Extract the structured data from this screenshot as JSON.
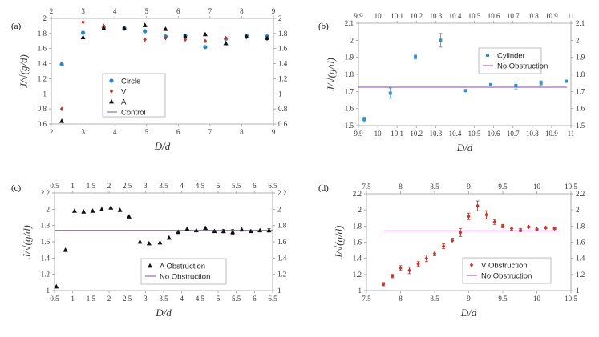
{
  "colors": {
    "circle": "#2e86c1",
    "v": "#c0392b",
    "a": "#111111",
    "control": "#8e44ad",
    "cylinder": "#3b8fc4",
    "axis": "#9a9a9a",
    "text": "#333333"
  },
  "chart_data": [
    {
      "panel": "(a)",
      "type": "scatter",
      "xlabel": "D/d",
      "ylabel": "J/√(g/d)",
      "xlim": [
        2,
        9
      ],
      "ylim": [
        0.6,
        2
      ],
      "xticks": [
        "2",
        "3",
        "4",
        "5",
        "6",
        "7",
        "8",
        "9"
      ],
      "yticks": [
        "0.6",
        "0.8",
        "1",
        "1.2",
        "1.4",
        "1.6",
        "1.8",
        "2"
      ],
      "series": [
        {
          "name": "Circle",
          "marker": "circle",
          "color": "#2e86c1",
          "x": [
            2.33,
            3.0,
            3.65,
            4.3,
            4.95,
            5.6,
            6.22,
            6.85,
            7.5,
            8.15,
            8.8
          ],
          "y": [
            1.39,
            1.81,
            1.88,
            1.87,
            1.83,
            1.76,
            1.77,
            1.62,
            1.73,
            1.77,
            1.76
          ]
        },
        {
          "name": "V",
          "marker": "diamond",
          "color": "#c0392b",
          "x": [
            2.33,
            3.0,
            3.65,
            4.3,
            4.95,
            5.6,
            6.22,
            6.85,
            7.5,
            8.15,
            8.8
          ],
          "y": [
            0.8,
            1.95,
            1.9,
            1.86,
            1.72,
            1.74,
            1.72,
            1.7,
            1.74,
            1.75,
            1.73
          ]
        },
        {
          "name": "A",
          "marker": "triangle",
          "color": "#111111",
          "x": [
            2.33,
            3.0,
            3.65,
            4.3,
            4.95,
            5.6,
            6.22,
            6.85,
            7.5,
            8.15,
            8.8
          ],
          "y": [
            0.64,
            1.75,
            1.87,
            1.87,
            1.91,
            1.86,
            1.76,
            1.79,
            1.67,
            1.76,
            1.74
          ]
        }
      ],
      "control": {
        "name": "Control",
        "value": 1.74,
        "x": [
          2.2,
          8.95
        ],
        "color": "#8e44ad"
      },
      "legend": [
        "Circle",
        "V",
        "A",
        "Control"
      ]
    },
    {
      "panel": "(b)",
      "type": "scatter",
      "xlabel": "D/d",
      "ylabel": "J/√(g/d)",
      "xlim": [
        9.9,
        11
      ],
      "ylim": [
        1.5,
        2.1
      ],
      "xticks": [
        "9.9",
        "10",
        "10.1",
        "10.2",
        "10.3",
        "10.4",
        "10.5",
        "10.6",
        "10.7",
        "10.8",
        "10.9",
        "11"
      ],
      "yticks": [
        "1.5",
        "1.6",
        "1.7",
        "1.8",
        "1.9",
        "2",
        "2.1"
      ],
      "series": [
        {
          "name": "Cylinder",
          "marker": "square",
          "color": "#3b8fc4",
          "x": [
            9.93,
            10.065,
            10.195,
            10.325,
            10.455,
            10.585,
            10.715,
            10.845,
            10.975
          ],
          "y": [
            1.535,
            1.69,
            1.905,
            2.0,
            1.705,
            1.74,
            1.735,
            1.75,
            1.76
          ],
          "err": [
            0.015,
            0.03,
            0.015,
            0.04,
            0.005,
            0.005,
            0.02,
            0.012,
            0.005
          ]
        }
      ],
      "control": {
        "name": "No Obstruction",
        "value": 1.725,
        "x": [
          9.9,
          10.98
        ],
        "color": "#8e44ad"
      },
      "legend": [
        "Cylinder",
        "No Obstruction"
      ]
    },
    {
      "panel": "(c)",
      "type": "scatter",
      "xlabel": "D/d",
      "ylabel": "J/√(g/d)",
      "xlim": [
        0.5,
        6.5
      ],
      "ylim": [
        1,
        2.2
      ],
      "xticks": [
        "0.5",
        "1",
        "1.5",
        "2",
        "2.5",
        "3",
        "3.5",
        "4",
        "4.5",
        "5",
        "5.5",
        "6",
        "6.5"
      ],
      "yticks": [
        "1",
        "1.2",
        "1.4",
        "1.6",
        "1.8",
        "2",
        "2.2"
      ],
      "series": [
        {
          "name": "A Obstruction",
          "marker": "triangle",
          "color": "#111111",
          "x": [
            0.55,
            0.8,
            1.05,
            1.3,
            1.55,
            1.8,
            2.05,
            2.3,
            2.55,
            2.85,
            3.1,
            3.4,
            3.65,
            3.9,
            4.15,
            4.4,
            4.65,
            4.9,
            5.15,
            5.4,
            5.65,
            5.9,
            6.15,
            6.4
          ],
          "y": [
            1.05,
            1.5,
            1.98,
            1.97,
            1.98,
            2.0,
            2.02,
            1.99,
            1.91,
            1.6,
            1.58,
            1.59,
            1.65,
            1.72,
            1.76,
            1.74,
            1.77,
            1.73,
            1.73,
            1.72,
            1.75,
            1.73,
            1.74,
            1.74
          ],
          "err": [
            0,
            0,
            0,
            0,
            0,
            0,
            0,
            0,
            0,
            0,
            0,
            0,
            0,
            0,
            0,
            0,
            0,
            0,
            0.02,
            0.03,
            0,
            0,
            0,
            0.02
          ]
        }
      ],
      "control": {
        "name": "No Obstruction",
        "value": 1.74,
        "x": [
          0.5,
          6.5
        ],
        "color": "#8e44ad"
      },
      "legend": [
        "A Obstruction",
        "No Obstruction"
      ]
    },
    {
      "panel": "(d)",
      "type": "scatter",
      "xlabel": "D/d",
      "ylabel": "J/√(g/d)",
      "xlim": [
        7.5,
        10.5
      ],
      "ylim": [
        1,
        2.2
      ],
      "xticks": [
        "7.5",
        "8",
        "8.5",
        "9",
        "9.5",
        "10",
        "10.5"
      ],
      "yticks": [
        "1",
        "1.2",
        "1.4",
        "1.6",
        "1.8",
        "2",
        "2.2"
      ],
      "series": [
        {
          "name": "V Obstruction",
          "marker": "diamond",
          "color": "#c0392b",
          "x": [
            7.75,
            7.88,
            8.0,
            8.13,
            8.26,
            8.38,
            8.5,
            8.63,
            8.76,
            8.88,
            9.0,
            9.13,
            9.26,
            9.38,
            9.5,
            9.63,
            9.76,
            9.88,
            10.0,
            10.13,
            10.26
          ],
          "y": [
            1.08,
            1.18,
            1.28,
            1.25,
            1.33,
            1.4,
            1.46,
            1.55,
            1.62,
            1.72,
            1.92,
            2.05,
            1.94,
            1.85,
            1.8,
            1.77,
            1.75,
            1.79,
            1.76,
            1.78,
            1.77
          ],
          "err": [
            0.02,
            0.02,
            0.03,
            0.04,
            0.03,
            0.04,
            0.03,
            0.03,
            0.03,
            0.05,
            0.04,
            0.06,
            0.05,
            0.03,
            0.02,
            0.02,
            0.02,
            0.01,
            0.01,
            0.01,
            0.01
          ]
        }
      ],
      "control": {
        "name": "No Obstruction",
        "value": 1.74,
        "x": [
          7.75,
          10.32
        ],
        "color": "#8e44ad"
      },
      "legend": [
        "V Obstruction",
        "No Obstruction"
      ]
    }
  ]
}
